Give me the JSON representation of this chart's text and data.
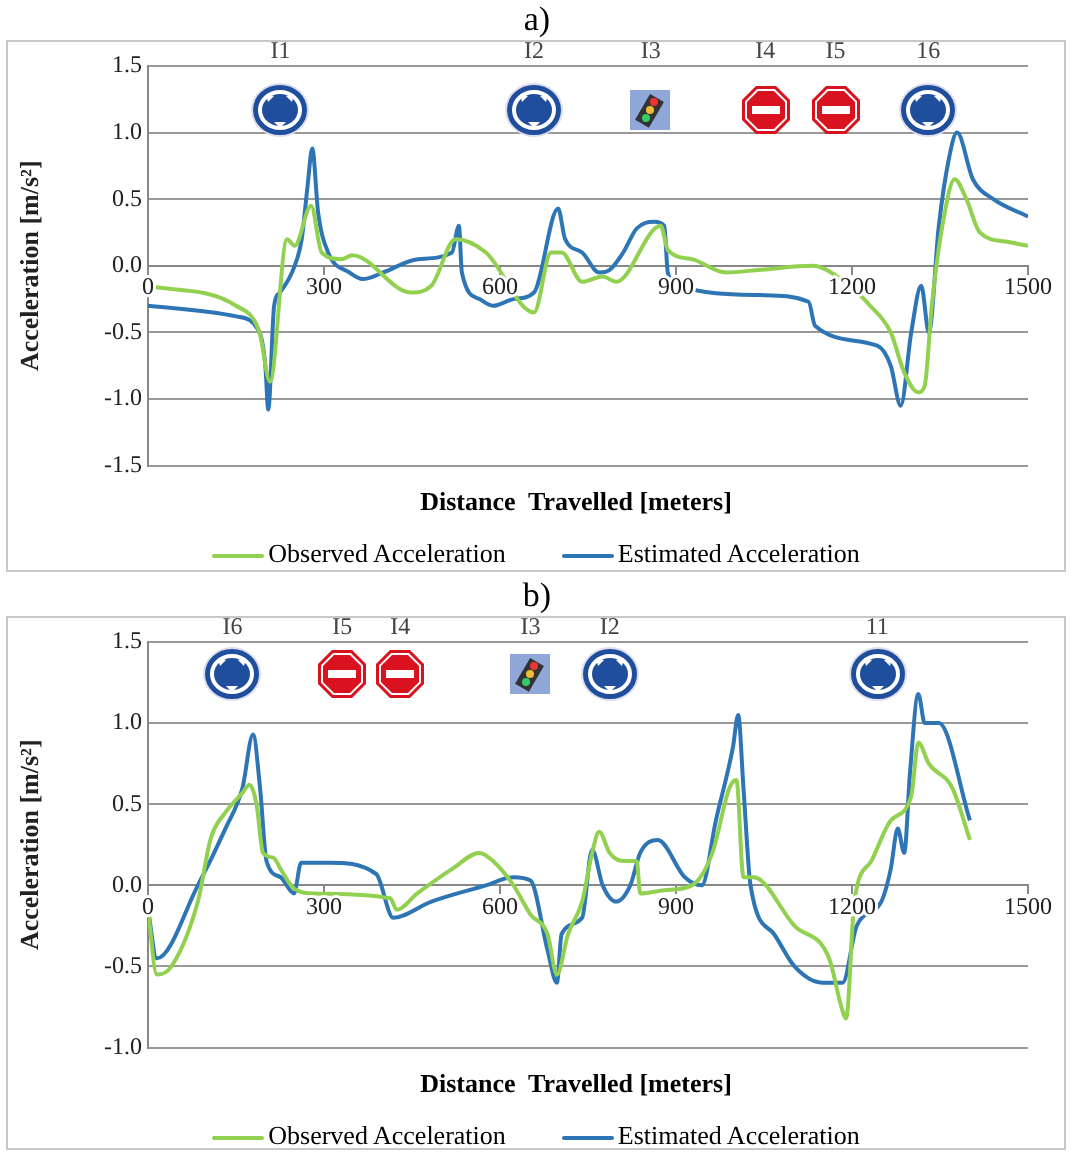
{
  "chart_data": [
    {
      "type": "line",
      "title": "a)",
      "xlabel": "Distance  Travelled [meters]",
      "ylabel": "Acceleration [m/s²]",
      "xlim": [
        0,
        1500
      ],
      "xticks": [
        0,
        300,
        600,
        900,
        1200,
        1500
      ],
      "ylim": [
        -1.5,
        1.5
      ],
      "yticks": [
        -1.5,
        {
          "value": -1,
          "label": "-1.0"
        },
        -0.5,
        {
          "value": 0,
          "label": "0.0"
        },
        0.5,
        {
          "value": 1,
          "label": "1.0"
        },
        1.5
      ],
      "grid": "y",
      "legend": "bottom",
      "marker": "none",
      "annotations": [
        "I1",
        "I2",
        "I3",
        "I4",
        "I5",
        "16"
      ],
      "series": [
        {
          "name": "Observed Acceleration",
          "color": "#92d050",
          "x": [
            0,
            150,
            190,
            208,
            237,
            250,
            278,
            296,
            330,
            348,
            448,
            483,
            524,
            576,
            658,
            687,
            705,
            740,
            775,
            798,
            874,
            886,
            927,
            985,
            1044,
            1132,
            1196,
            1231,
            1266,
            1289,
            1313,
            1324,
            1336,
            1354,
            1375,
            1395,
            1418,
            1465,
            1500
          ],
          "values": [
            -0.15,
            -0.3,
            -0.5,
            -0.87,
            0.2,
            0.15,
            0.45,
            0.1,
            0.05,
            0.08,
            -0.2,
            -0.15,
            0.2,
            0.1,
            -0.35,
            0.1,
            0.1,
            -0.12,
            -0.08,
            -0.12,
            0.3,
            0.12,
            0.05,
            -0.05,
            -0.03,
            0.0,
            -0.15,
            -0.3,
            -0.5,
            -0.8,
            -0.95,
            -0.9,
            -0.3,
            0.3,
            0.65,
            0.5,
            0.25,
            0.18,
            0.15
          ]
        },
        {
          "name": "Estimated Acceleration",
          "color": "#2e75b6",
          "x": [
            0,
            150,
            190,
            200,
            205,
            215,
            225,
            250,
            262,
            272,
            280,
            290,
            307,
            343,
            366,
            401,
            460,
            518,
            530,
            535,
            565,
            588,
            623,
            658,
            699,
            711,
            740,
            769,
            787,
            810,
            833,
            863,
            880,
            886,
            904,
            1044,
            1126,
            1137,
            1243,
            1266,
            1283,
            1301,
            1318,
            1331,
            1348,
            1365,
            1379,
            1406,
            1441,
            1500
          ],
          "values": [
            -0.3,
            -0.38,
            -0.5,
            -0.75,
            -1.08,
            -0.3,
            -0.2,
            0.0,
            0.2,
            0.6,
            0.88,
            0.4,
            0.1,
            -0.05,
            -0.1,
            -0.05,
            0.05,
            0.1,
            0.3,
            -0.05,
            -0.25,
            -0.3,
            -0.25,
            -0.2,
            0.43,
            0.2,
            0.1,
            -0.05,
            -0.03,
            0.1,
            0.28,
            0.33,
            0.3,
            -0.05,
            -0.15,
            -0.22,
            -0.27,
            -0.45,
            -0.6,
            -0.75,
            -1.05,
            -0.5,
            -0.15,
            -0.5,
            0.3,
            0.8,
            1.0,
            0.65,
            0.5,
            0.37
          ]
        }
      ]
    },
    {
      "type": "line",
      "title": "b)",
      "xlabel": "Distance  Travelled [meters]",
      "ylabel": "Acceleration [m/s²]",
      "xlim": [
        0,
        1500
      ],
      "xticks": [
        0,
        300,
        600,
        900,
        1200,
        1500
      ],
      "ylim": [
        -1.0,
        1.5
      ],
      "yticks": [
        {
          "value": -1,
          "label": "-1.0"
        },
        -0.5,
        {
          "value": 0,
          "label": "0.0"
        },
        0.5,
        {
          "value": 1,
          "label": "1.0"
        },
        1.5
      ],
      "grid": "y",
      "legend": "bottom",
      "marker": "none",
      "annotations": [
        "I6",
        "I5",
        "I4",
        "I3",
        "I2",
        "11"
      ],
      "series": [
        {
          "name": "Observed Acceleration",
          "color": "#92d050",
          "x": [
            0,
            15,
            40,
            85,
            107,
            132,
            161,
            173,
            185,
            196,
            214,
            226,
            249,
            284,
            413,
            424,
            459,
            518,
            565,
            588,
            623,
            652,
            681,
            697,
            716,
            740,
            757,
            769,
            787,
            810,
            833,
            839,
            880,
            927,
            962,
            991,
            1003,
            1015,
            1032,
            1102,
            1161,
            1182,
            1190,
            1204,
            1233,
            1266,
            1301,
            1313,
            1331,
            1371,
            1401
          ],
          "values": [
            -0.15,
            -0.55,
            -0.5,
            -0.1,
            0.29,
            0.45,
            0.57,
            0.62,
            0.5,
            0.2,
            0.17,
            0.1,
            -0.02,
            -0.05,
            -0.08,
            -0.15,
            -0.05,
            0.1,
            0.2,
            0.15,
            0.0,
            -0.18,
            -0.3,
            -0.55,
            -0.3,
            -0.1,
            0.2,
            0.33,
            0.2,
            0.15,
            0.15,
            -0.05,
            -0.03,
            0.0,
            0.2,
            0.6,
            0.65,
            0.05,
            0.05,
            -0.25,
            -0.45,
            -0.75,
            -0.82,
            -0.1,
            0.15,
            0.4,
            0.55,
            0.88,
            0.75,
            0.6,
            0.28
          ]
        },
        {
          "name": "Estimated Acceleration",
          "color": "#2e75b6",
          "x": [
            0,
            15,
            85,
            132,
            161,
            179,
            191,
            202,
            226,
            249,
            261,
            307,
            389,
            418,
            483,
            576,
            623,
            652,
            681,
            697,
            705,
            740,
            757,
            775,
            798,
            822,
            839,
            869,
            915,
            944,
            968,
            997,
            1006,
            1015,
            1027,
            1067,
            1102,
            1149,
            1184,
            1208,
            1250,
            1266,
            1278,
            1289,
            1299,
            1313,
            1324,
            1348,
            1401
          ],
          "values": [
            -0.15,
            -0.45,
            0.0,
            0.35,
            0.6,
            0.93,
            0.6,
            0.15,
            0.05,
            -0.05,
            0.14,
            0.14,
            0.07,
            -0.2,
            -0.1,
            0.0,
            0.05,
            0.03,
            -0.4,
            -0.6,
            -0.3,
            -0.2,
            0.22,
            0.0,
            -0.1,
            0.0,
            0.2,
            0.28,
            0.05,
            0.0,
            0.4,
            0.85,
            1.05,
            0.6,
            0.0,
            -0.3,
            -0.5,
            -0.6,
            -0.6,
            -0.25,
            -0.1,
            0.1,
            0.35,
            0.2,
            0.7,
            1.18,
            1.0,
            1.0,
            0.4
          ]
        }
      ]
    }
  ]
}
